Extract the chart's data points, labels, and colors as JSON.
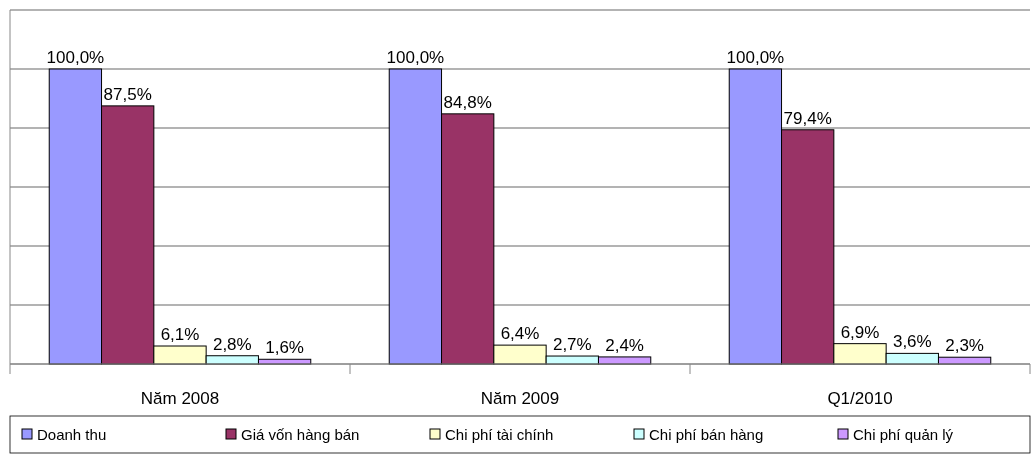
{
  "chart_data": {
    "type": "bar",
    "categories": [
      "Năm 2008",
      "Năm 2009",
      "Q1/2010"
    ],
    "series": [
      {
        "name": "Doanh thu",
        "color": "#9999ff",
        "values": [
          100.0,
          100.0,
          100.0
        ],
        "value_labels": [
          "100,0%",
          "100,0%",
          "100,0%"
        ]
      },
      {
        "name": "Giá vốn hàng bán",
        "color": "#993366",
        "values": [
          87.5,
          84.8,
          79.4
        ],
        "value_labels": [
          "87,5%",
          "84,8%",
          "79,4%"
        ]
      },
      {
        "name": "Chi phí tài chính",
        "color": "#ffffcc",
        "values": [
          6.1,
          6.4,
          6.9
        ],
        "value_labels": [
          "6,1%",
          "6,4%",
          "6,9%"
        ]
      },
      {
        "name": "Chi phí bán hàng",
        "color": "#ccffff",
        "values": [
          2.8,
          2.7,
          3.6
        ],
        "value_labels": [
          "2,8%",
          "2,7%",
          "3,6%"
        ]
      },
      {
        "name": "Chi phí quản lý",
        "color": "#cc99ff",
        "values": [
          1.6,
          2.4,
          2.3
        ],
        "value_labels": [
          "1,6%",
          "2,4%",
          "2,3%"
        ]
      }
    ],
    "ylim": [
      0,
      120
    ],
    "yticks": [
      {
        "value": 0,
        "label": null
      },
      {
        "value": 20,
        "label": null
      },
      {
        "value": 40,
        "label": null
      },
      {
        "value": 60,
        "label": null
      },
      {
        "value": 80,
        "label": null
      },
      {
        "value": 100,
        "label": null
      },
      {
        "value": 120,
        "label": null
      }
    ],
    "tick_labels": "x",
    "grid": "y",
    "legend": "bottom"
  }
}
